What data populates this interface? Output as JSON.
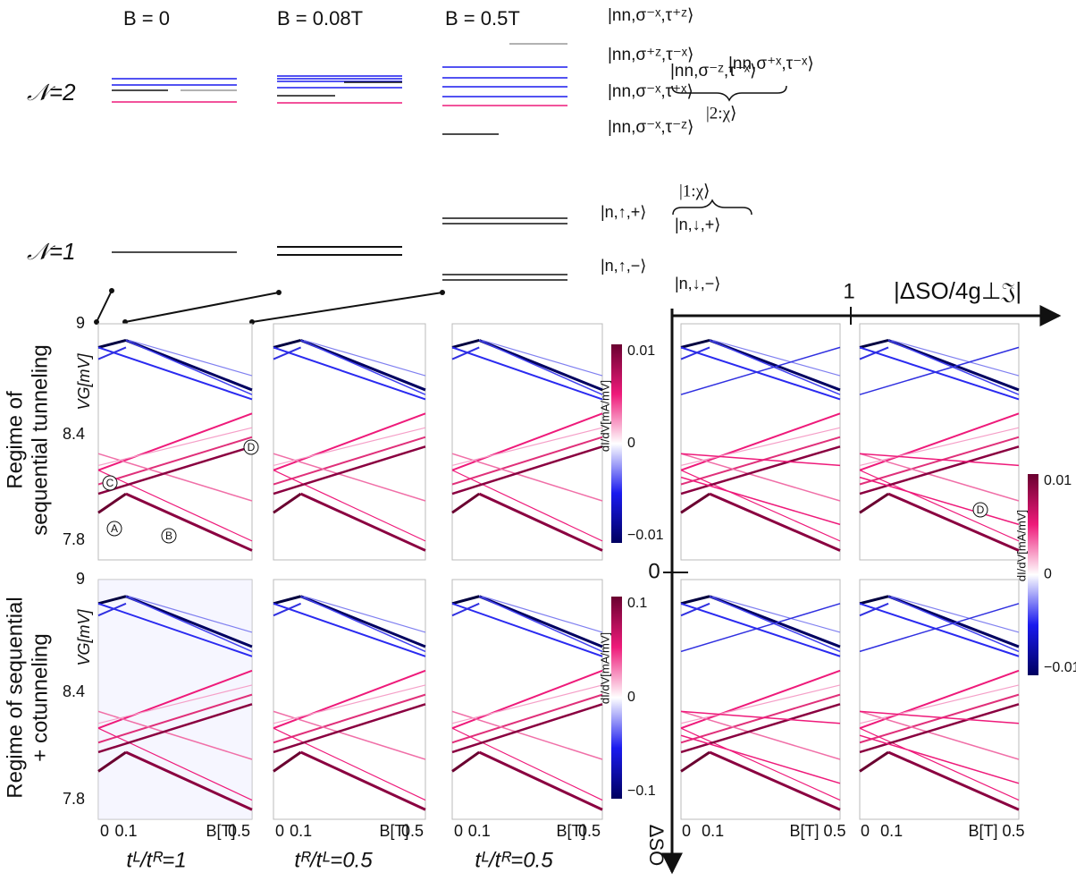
{
  "headers": [
    "B = 0",
    "B = 0.08T",
    "B = 0.5T"
  ],
  "levels": [
    "𝒩=2",
    "𝒩=1"
  ],
  "states_n2": [
    {
      "text": "|nn,σ⁻ˣ,τ⁺ᶻ⟩",
      "color": "#999999"
    },
    {
      "text": "|nn,σ⁺ᶻ,τ⁻ˣ⟩",
      "color": "#1a1aee"
    },
    {
      "text": "|nn,σ⁻ˣ,τ⁺ˣ⟩",
      "color": "#ee1a7a"
    },
    {
      "text": "|nn,σ⁻ˣ,τ⁻ᶻ⟩",
      "color": "#111111"
    }
  ],
  "states_n2_extra": [
    "|nn,σ⁺ˣ,τ⁻ˣ⟩",
    "|nn,σ⁻ᶻ,τ⁻ˣ⟩"
  ],
  "chi2": "|2:χ⟩",
  "chi1": "|1:χ⟩",
  "states_n1": [
    "|n,↑,+⟩",
    "|n,↓,+⟩",
    "|n,↑,−⟩",
    "|n,↓,−⟩"
  ],
  "row_labels": [
    [
      "Regime of",
      "sequential tunneling"
    ],
    [
      "Regime of sequential",
      "+ cotunneling"
    ]
  ],
  "y_axis_label": "VG[mV]",
  "y_ticks": [
    "9",
    "8.4",
    "7.8"
  ],
  "x_ticks": [
    "0",
    "0.1",
    "B[T]",
    "0.5"
  ],
  "bottom_labels": [
    "tᴸ/tᴿ=1",
    "tᴿ/tᴸ=0.5",
    "tᴸ/tᴿ=0.5"
  ],
  "colorbar_label": "dI/dV[mA/mV]",
  "colorbar_ticks_top": [
    "0.01",
    "0",
    "−0.01"
  ],
  "colorbar_ticks_bottom": [
    "0.1",
    "0",
    "−0.1"
  ],
  "markers": [
    "A",
    "B",
    "C",
    "D",
    "D"
  ],
  "right_axis": {
    "x_label": "|ΔSO/4g⊥𝔍|",
    "x_tick": "1",
    "y_tick": "0",
    "y_label": "ΔSO"
  }
}
